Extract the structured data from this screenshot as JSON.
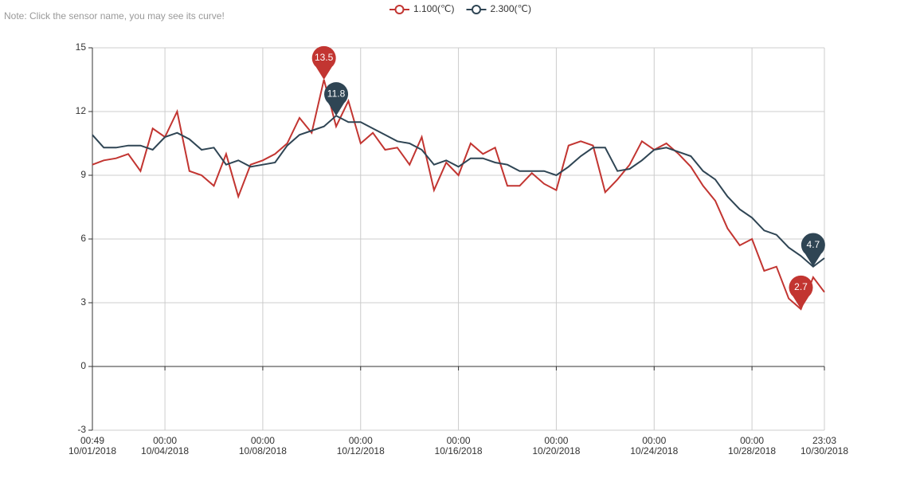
{
  "note": "Note: Click the sensor name, you may see its curve!",
  "chart_data": {
    "type": "line",
    "x": [
      "10/01/2018 00:49",
      "10/01/2018 12:00",
      "10/02/2018 00:00",
      "10/02/2018 12:00",
      "10/03/2018 00:00",
      "10/03/2018 12:00",
      "10/04/2018 00:00",
      "10/04/2018 12:00",
      "10/05/2018 00:00",
      "10/05/2018 12:00",
      "10/06/2018 00:00",
      "10/06/2018 12:00",
      "10/07/2018 00:00",
      "10/07/2018 12:00",
      "10/08/2018 00:00",
      "10/08/2018 12:00",
      "10/09/2018 00:00",
      "10/09/2018 12:00",
      "10/10/2018 00:00",
      "10/10/2018 12:00",
      "10/11/2018 00:00",
      "10/11/2018 12:00",
      "10/12/2018 00:00",
      "10/12/2018 12:00",
      "10/13/2018 00:00",
      "10/13/2018 12:00",
      "10/14/2018 00:00",
      "10/14/2018 12:00",
      "10/15/2018 00:00",
      "10/15/2018 12:00",
      "10/16/2018 00:00",
      "10/16/2018 12:00",
      "10/17/2018 00:00",
      "10/17/2018 12:00",
      "10/18/2018 00:00",
      "10/18/2018 12:00",
      "10/19/2018 00:00",
      "10/19/2018 12:00",
      "10/20/2018 00:00",
      "10/20/2018 12:00",
      "10/21/2018 00:00",
      "10/21/2018 12:00",
      "10/22/2018 00:00",
      "10/22/2018 12:00",
      "10/23/2018 00:00",
      "10/23/2018 12:00",
      "10/24/2018 00:00",
      "10/24/2018 12:00",
      "10/25/2018 00:00",
      "10/25/2018 12:00",
      "10/26/2018 00:00",
      "10/26/2018 12:00",
      "10/27/2018 00:00",
      "10/27/2018 12:00",
      "10/28/2018 00:00",
      "10/28/2018 12:00",
      "10/29/2018 00:00",
      "10/29/2018 12:00",
      "10/30/2018 00:00",
      "10/30/2018 12:00",
      "10/30/2018 23:03"
    ],
    "series": [
      {
        "name": "1.100(℃)",
        "color": "#c23531",
        "values": [
          9.5,
          9.7,
          9.8,
          10.0,
          9.2,
          11.2,
          10.8,
          12.0,
          9.2,
          9.0,
          8.5,
          10.0,
          8.0,
          9.5,
          9.7,
          10.0,
          10.5,
          11.7,
          11.0,
          13.5,
          11.3,
          12.5,
          10.5,
          11.0,
          10.2,
          10.3,
          9.5,
          10.8,
          8.3,
          9.6,
          9.0,
          10.5,
          10.0,
          10.3,
          8.5,
          8.5,
          9.1,
          8.6,
          8.3,
          10.4,
          10.6,
          10.4,
          8.2,
          8.8,
          9.5,
          10.6,
          10.2,
          10.5,
          10.0,
          9.4,
          8.5,
          7.8,
          6.5,
          5.7,
          6.0,
          4.5,
          4.7,
          3.2,
          2.7,
          4.2,
          3.5
        ]
      },
      {
        "name": "2.300(℃)",
        "color": "#2f4554",
        "values": [
          10.9,
          10.3,
          10.3,
          10.4,
          10.4,
          10.2,
          10.8,
          11.0,
          10.7,
          10.2,
          10.3,
          9.5,
          9.7,
          9.4,
          9.5,
          9.6,
          10.4,
          10.9,
          11.1,
          11.3,
          11.8,
          11.5,
          11.5,
          11.2,
          10.9,
          10.6,
          10.5,
          10.2,
          9.5,
          9.7,
          9.4,
          9.8,
          9.8,
          9.6,
          9.5,
          9.2,
          9.2,
          9.2,
          9.0,
          9.4,
          9.9,
          10.3,
          10.3,
          9.2,
          9.3,
          9.7,
          10.2,
          10.3,
          10.1,
          9.9,
          9.2,
          8.8,
          8.0,
          7.4,
          7.0,
          6.4,
          6.2,
          5.6,
          5.2,
          4.7,
          5.1
        ]
      }
    ],
    "mark_points": [
      "max",
      "min"
    ],
    "xlim": [
      "10/01/2018 00:49",
      "10/30/2018 23:03"
    ],
    "xticks": [
      {
        "value": "10/01/2018 00:49",
        "label": [
          "00:49",
          "10/01/2018"
        ]
      },
      {
        "value": "10/04/2018 00:00",
        "label": [
          "00:00",
          "10/04/2018"
        ]
      },
      {
        "value": "10/08/2018 00:00",
        "label": [
          "00:00",
          "10/08/2018"
        ]
      },
      {
        "value": "10/12/2018 00:00",
        "label": [
          "00:00",
          "10/12/2018"
        ]
      },
      {
        "value": "10/16/2018 00:00",
        "label": [
          "00:00",
          "10/16/2018"
        ]
      },
      {
        "value": "10/20/2018 00:00",
        "label": [
          "00:00",
          "10/20/2018"
        ]
      },
      {
        "value": "10/24/2018 00:00",
        "label": [
          "00:00",
          "10/24/2018"
        ]
      },
      {
        "value": "10/28/2018 00:00",
        "label": [
          "00:00",
          "10/28/2018"
        ]
      },
      {
        "value": "10/30/2018 23:03",
        "label": [
          "23:03",
          "10/30/2018"
        ]
      }
    ],
    "ylim": [
      -3,
      15
    ],
    "yticks": [
      -3,
      0,
      3,
      6,
      9,
      12,
      15
    ],
    "grid": true
  }
}
